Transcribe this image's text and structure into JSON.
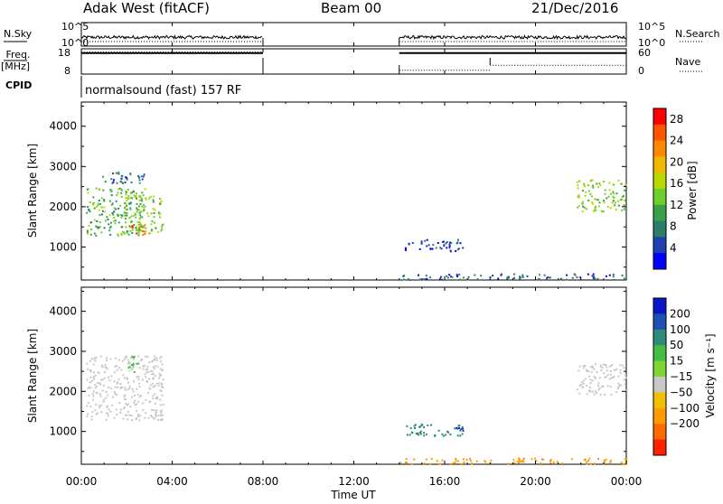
{
  "header": {
    "station": "Adak West (fitACF)",
    "beam": "Beam 00",
    "date": "21/Dec/2016"
  },
  "noise_panel": {
    "left_label": "N.Sky",
    "right_label": "N.Search",
    "top_tick_left": "10^5",
    "bottom_tick_left": "10^0",
    "top_tick_right": "10^5",
    "bottom_tick_right": "10^0",
    "scale": "log",
    "ylim": [
      "10^0",
      "10^5"
    ]
  },
  "freq_panel": {
    "left_label_line1": "Freq.",
    "left_label_line2": "[MHz]",
    "right_label": "Nave",
    "left_ticks": [
      "18",
      "8"
    ],
    "right_ticks": [
      "60",
      "0"
    ],
    "freq_ylim": [
      8,
      18
    ],
    "nave_ylim": [
      0,
      60
    ]
  },
  "cpid_panel": {
    "label": "CPID",
    "mode_text": "normalsound (fast) 157 RF"
  },
  "x_axis": {
    "label": "Time UT",
    "range_hours": [
      0,
      24
    ],
    "ticks": [
      {
        "hour": 0,
        "label": "00:00"
      },
      {
        "hour": 4,
        "label": "04:00"
      },
      {
        "hour": 8,
        "label": "08:00"
      },
      {
        "hour": 12,
        "label": "12:00"
      },
      {
        "hour": 16,
        "label": "16:00"
      },
      {
        "hour": 20,
        "label": "20:00"
      },
      {
        "hour": 24,
        "label": "00:00"
      }
    ]
  },
  "range_axis": {
    "label": "Slant Range [km]",
    "range_km": [
      180,
      4600
    ],
    "ticks": [
      {
        "km": 1000,
        "label": "1000"
      },
      {
        "km": 2000,
        "label": "2000"
      },
      {
        "km": 3000,
        "label": "3000"
      },
      {
        "km": 4000,
        "label": "4000"
      }
    ]
  },
  "power_colorbar": {
    "label": "Power [dB]",
    "ticks": [
      "4",
      "8",
      "12",
      "16",
      "20",
      "24",
      "28"
    ],
    "colors": [
      "#0000ff",
      "#1f3fb0",
      "#2e7d6a",
      "#3aa14a",
      "#6ccf2a",
      "#b8d800",
      "#f0b800",
      "#ff8800",
      "#ff5500",
      "#ff0000"
    ]
  },
  "velocity_colorbar": {
    "label": "Velocity [m s⁻¹]",
    "ticks": [
      "200",
      "100",
      "50",
      "15",
      "−15",
      "−50",
      "−100",
      "−200"
    ],
    "colors": [
      "#0a14c8",
      "#1f4fb0",
      "#2e8a7a",
      "#44bb44",
      "#7ed631",
      "#c8c8c8",
      "#f0c000",
      "#ff9a00",
      "#ff6a00",
      "#ff2000"
    ]
  },
  "chart_data": {
    "type": "heatmap",
    "title": "Adak West (fitACF)  Beam 00  21/Dec/2016",
    "xlabel": "Time UT",
    "ylabel": "Slant Range [km]",
    "xlim": [
      0,
      24
    ],
    "ylim": [
      180,
      4600
    ],
    "data_gap_hours": [
      8,
      14
    ],
    "freq_series": {
      "name": "Freq.",
      "segments": [
        {
          "t_start": 0,
          "t_end": 8,
          "freq_mhz": 16.3
        },
        {
          "t_start": 14,
          "t_end": 18,
          "freq_mhz": 16.3
        },
        {
          "t_start": 18,
          "t_end": 24,
          "freq_mhz": 16.3
        }
      ]
    },
    "nave_series": {
      "name": "Nave",
      "segments": [
        {
          "t_start": 0,
          "t_end": 8,
          "nave": 52
        },
        {
          "t_start": 14,
          "t_end": 18,
          "nave": 9
        },
        {
          "t_start": 18,
          "t_end": 24,
          "nave": 21
        }
      ]
    },
    "power_regions": [
      {
        "t": [
          0.2,
          2.8
        ],
        "range_km": [
          1300,
          2500
        ],
        "power_db": 12
      },
      {
        "t": [
          0.9,
          2.8
        ],
        "range_km": [
          2600,
          2900
        ],
        "power_db": 6
      },
      {
        "t": [
          1.9,
          3.6
        ],
        "range_km": [
          1350,
          2300
        ],
        "power_db": 14
      },
      {
        "t": [
          2.1,
          2.8
        ],
        "range_km": [
          1300,
          1600
        ],
        "power_db": 26
      },
      {
        "t": [
          14.2,
          16.8
        ],
        "range_km": [
          900,
          1200
        ],
        "power_db": 4
      },
      {
        "t": [
          21.8,
          24.0
        ],
        "range_km": [
          1900,
          2700
        ],
        "power_db": 14
      },
      {
        "t": [
          14.0,
          24.0
        ],
        "range_km": [
          200,
          350
        ],
        "power_db": 6
      }
    ],
    "velocity_regions": [
      {
        "t": [
          0.2,
          3.6
        ],
        "range_km": [
          1300,
          2900
        ],
        "velocity_ms": 0
      },
      {
        "t": [
          2.0,
          2.5
        ],
        "range_km": [
          2500,
          2900
        ],
        "velocity_ms": 40
      },
      {
        "t": [
          14.2,
          16.8
        ],
        "range_km": [
          900,
          1200
        ],
        "velocity_ms": 60
      },
      {
        "t": [
          16.4,
          16.8
        ],
        "range_km": [
          900,
          1150
        ],
        "velocity_ms": 200
      },
      {
        "t": [
          21.8,
          24.0
        ],
        "range_km": [
          1900,
          2700
        ],
        "velocity_ms": 0
      },
      {
        "t": [
          14.0,
          24.0
        ],
        "range_km": [
          200,
          350
        ],
        "velocity_ms": -60
      }
    ]
  }
}
